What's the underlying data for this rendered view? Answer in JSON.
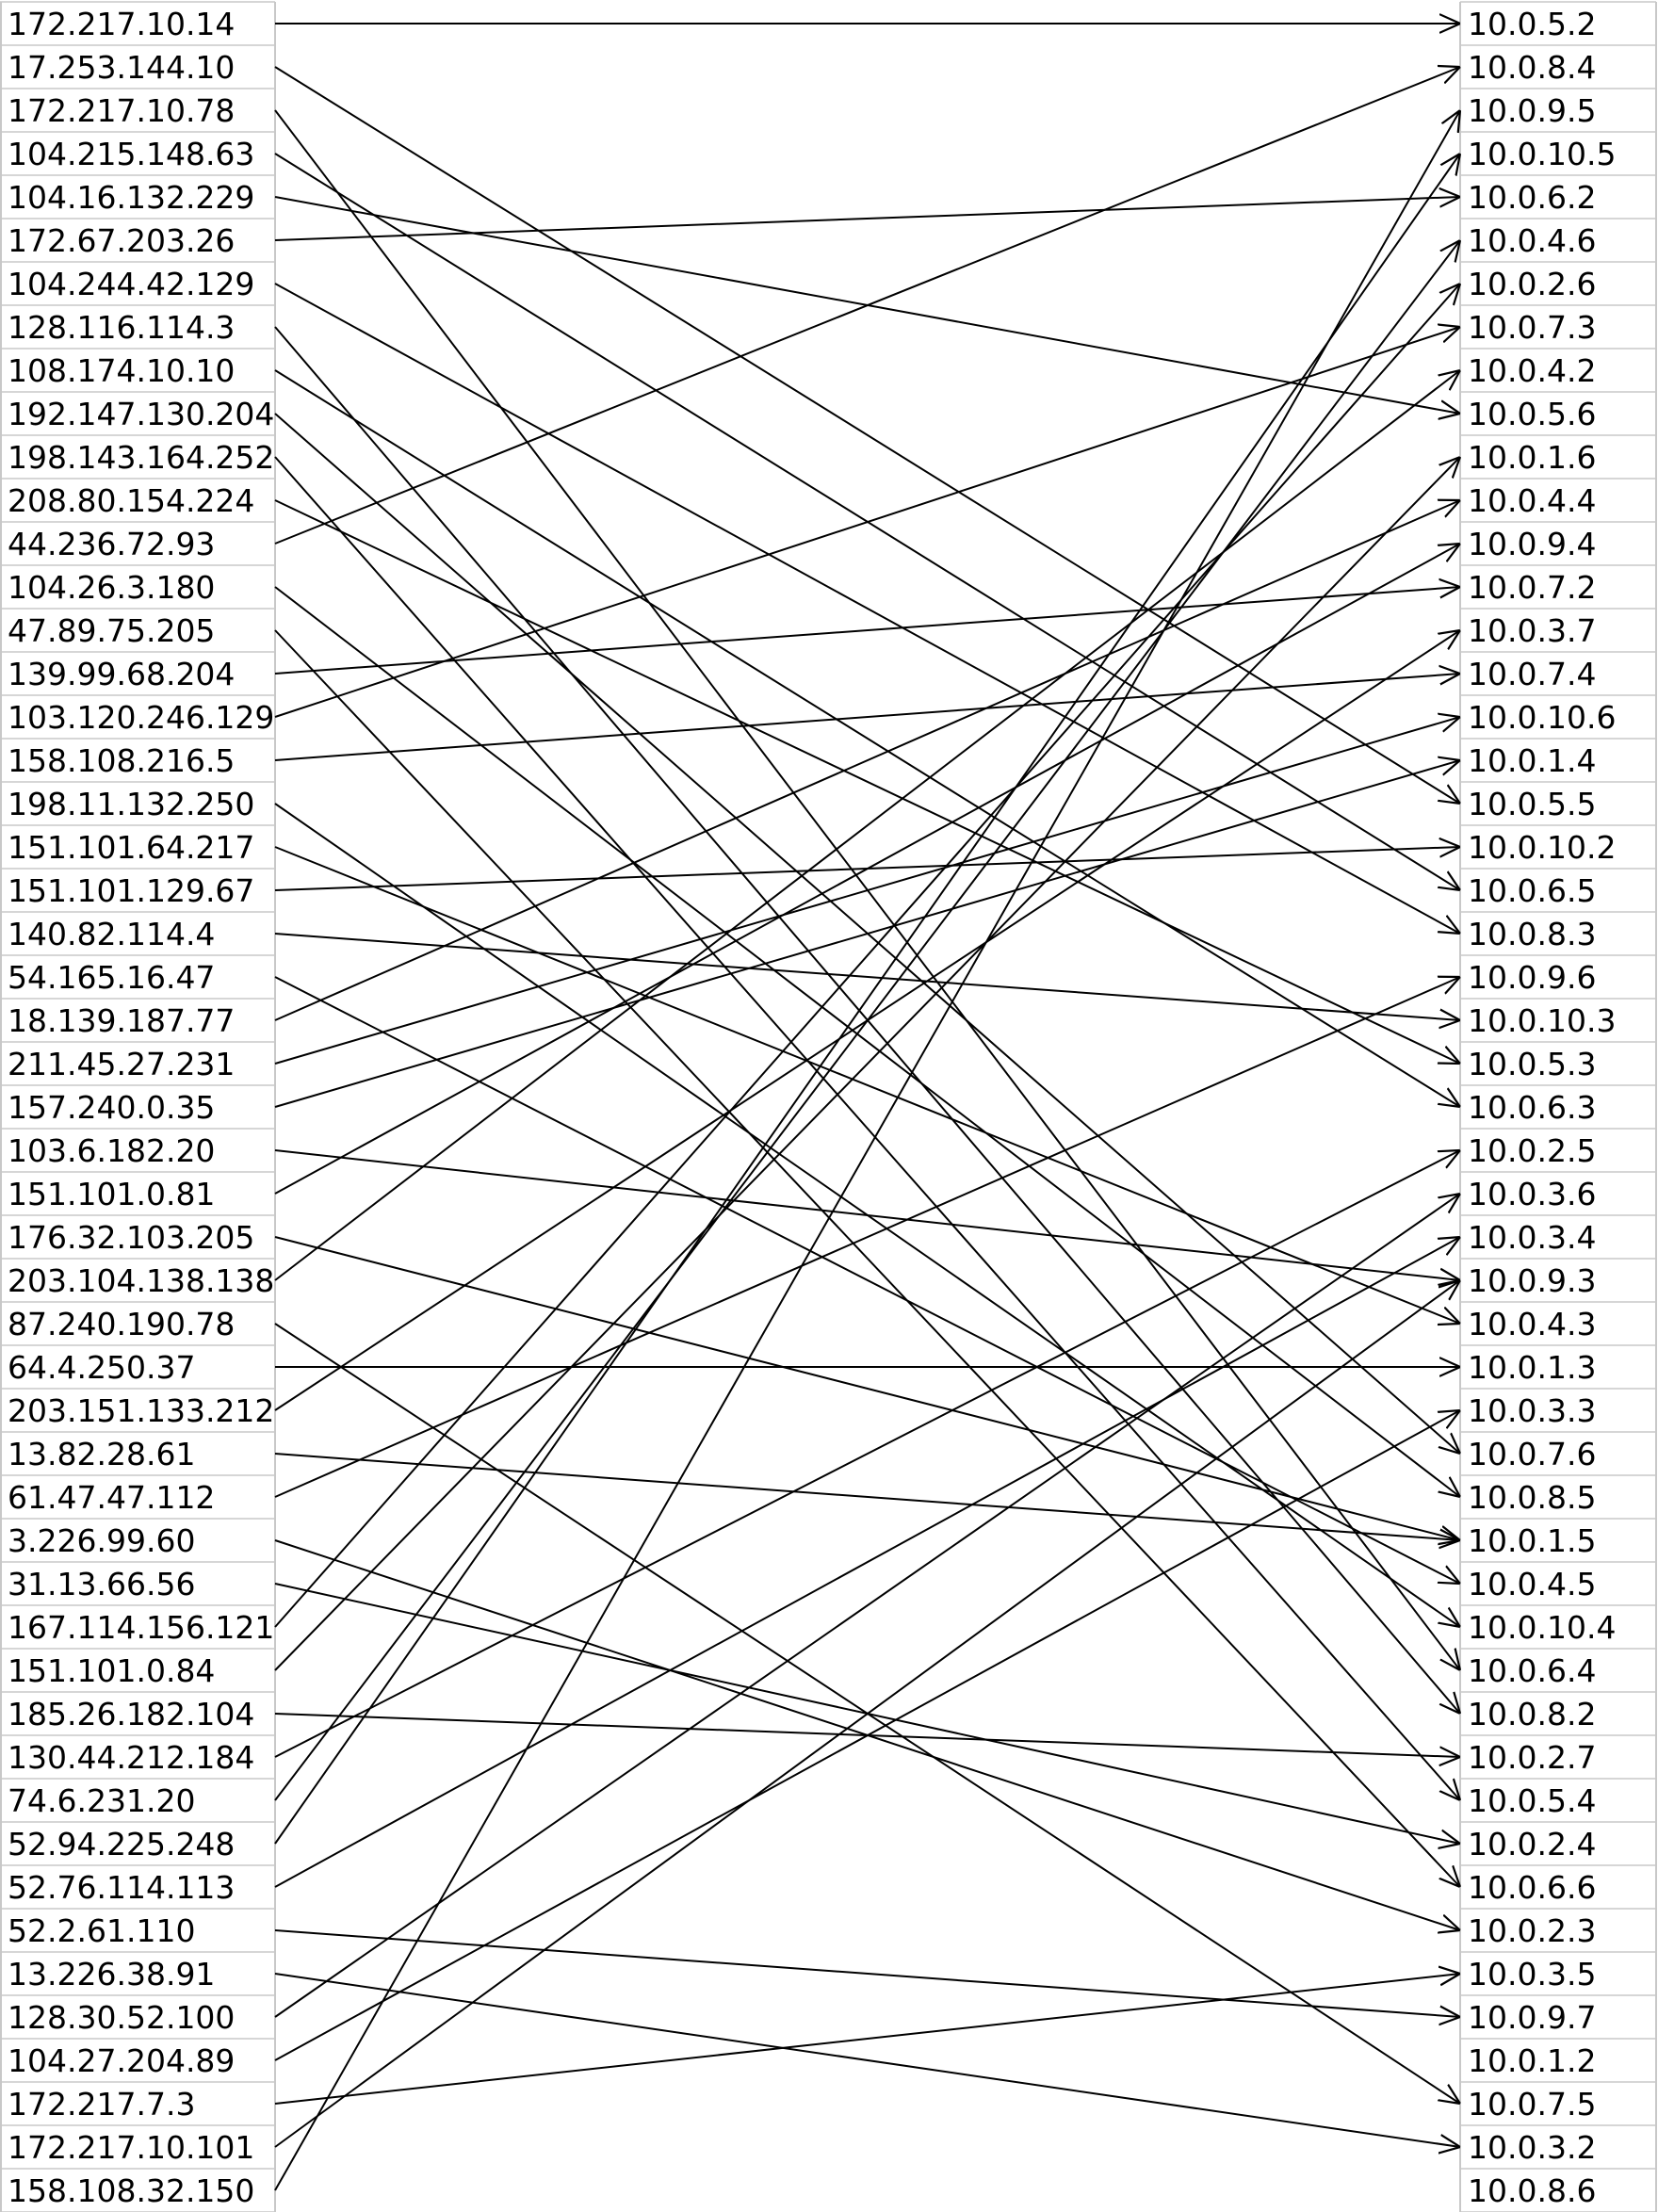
{
  "sources": [
    "172.217.10.14",
    "17.253.144.10",
    "172.217.10.78",
    "104.215.148.63",
    "104.16.132.229",
    "172.67.203.26",
    "104.244.42.129",
    "128.116.114.3",
    "108.174.10.10",
    "192.147.130.204",
    "198.143.164.252",
    "208.80.154.224",
    "44.236.72.93",
    "104.26.3.180",
    "47.89.75.205",
    "139.99.68.204",
    "103.120.246.129",
    "158.108.216.5",
    "198.11.132.250",
    "151.101.64.217",
    "151.101.129.67",
    "140.82.114.4",
    "54.165.16.47",
    "18.139.187.77",
    "211.45.27.231",
    "157.240.0.35",
    "103.6.182.20",
    "151.101.0.81",
    "176.32.103.205",
    "203.104.138.138",
    "87.240.190.78",
    "64.4.250.37",
    "203.151.133.212",
    "13.82.28.61",
    "61.47.47.112",
    "3.226.99.60",
    "31.13.66.56",
    "167.114.156.121",
    "151.101.0.84",
    "185.26.182.104",
    "130.44.212.184",
    "74.6.231.20",
    "52.94.225.248",
    "52.76.114.113",
    "52.2.61.110",
    "13.226.38.91",
    "128.30.52.100",
    "104.27.204.89",
    "172.217.7.3",
    "172.217.10.101",
    "158.108.32.150"
  ],
  "targets": [
    "10.0.5.2",
    "10.0.8.4",
    "10.0.9.5",
    "10.0.10.5",
    "10.0.6.2",
    "10.0.4.6",
    "10.0.2.6",
    "10.0.7.3",
    "10.0.4.2",
    "10.0.5.6",
    "10.0.1.6",
    "10.0.4.4",
    "10.0.9.4",
    "10.0.7.2",
    "10.0.3.7",
    "10.0.7.4",
    "10.0.10.6",
    "10.0.1.4",
    "10.0.5.5",
    "10.0.10.2",
    "10.0.6.5",
    "10.0.8.3",
    "10.0.9.6",
    "10.0.10.3",
    "10.0.5.3",
    "10.0.6.3",
    "10.0.2.5",
    "10.0.3.6",
    "10.0.3.4",
    "10.0.9.3",
    "10.0.4.3",
    "10.0.1.3",
    "10.0.3.3",
    "10.0.7.6",
    "10.0.8.5",
    "10.0.1.5",
    "10.0.4.5",
    "10.0.10.4",
    "10.0.6.4",
    "10.0.8.2",
    "10.0.2.7",
    "10.0.5.4",
    "10.0.2.4",
    "10.0.6.6",
    "10.0.2.3",
    "10.0.3.5",
    "10.0.9.7",
    "10.0.1.2",
    "10.0.7.5",
    "10.0.3.2",
    "10.0.8.6"
  ],
  "connections": [
    [
      "172.217.10.14",
      "10.0.5.2"
    ],
    [
      "17.253.144.10",
      "10.0.5.5"
    ],
    [
      "172.217.10.78",
      "10.0.6.4"
    ],
    [
      "104.215.148.63",
      "10.0.6.5"
    ],
    [
      "104.16.132.229",
      "10.0.5.6"
    ],
    [
      "172.67.203.26",
      "10.0.6.2"
    ],
    [
      "104.244.42.129",
      "10.0.8.3"
    ],
    [
      "128.116.114.3",
      "10.0.8.2"
    ],
    [
      "108.174.10.10",
      "10.0.6.3"
    ],
    [
      "192.147.130.204",
      "10.0.7.6"
    ],
    [
      "198.143.164.252",
      "10.0.5.4"
    ],
    [
      "208.80.154.224",
      "10.0.5.3"
    ],
    [
      "44.236.72.93",
      "10.0.8.4"
    ],
    [
      "104.26.3.180",
      "10.0.8.5"
    ],
    [
      "47.89.75.205",
      "10.0.6.6"
    ],
    [
      "139.99.68.204",
      "10.0.7.2"
    ],
    [
      "103.120.246.129",
      "10.0.7.3"
    ],
    [
      "158.108.216.5",
      "10.0.7.4"
    ],
    [
      "198.11.132.250",
      "10.0.10.4"
    ],
    [
      "151.101.64.217",
      "10.0.4.3"
    ],
    [
      "151.101.129.67",
      "10.0.10.2"
    ],
    [
      "140.82.114.4",
      "10.0.10.3"
    ],
    [
      "54.165.16.47",
      "10.0.4.5"
    ],
    [
      "18.139.187.77",
      "10.0.4.4"
    ],
    [
      "211.45.27.231",
      "10.0.10.6"
    ],
    [
      "157.240.0.35",
      "10.0.1.4"
    ],
    [
      "103.6.182.20",
      "10.0.9.3"
    ],
    [
      "151.101.0.81",
      "10.0.9.4"
    ],
    [
      "176.32.103.205",
      "10.0.1.5"
    ],
    [
      "203.104.138.138",
      "10.0.4.2"
    ],
    [
      "87.240.190.78",
      "10.0.7.5"
    ],
    [
      "64.4.250.37",
      "10.0.1.3"
    ],
    [
      "203.151.133.212",
      "10.0.3.7"
    ],
    [
      "13.82.28.61",
      "10.0.1.5"
    ],
    [
      "61.47.47.112",
      "10.0.9.6"
    ],
    [
      "3.226.99.60",
      "10.0.2.3"
    ],
    [
      "31.13.66.56",
      "10.0.2.4"
    ],
    [
      "167.114.156.121",
      "10.0.2.6"
    ],
    [
      "151.101.0.84",
      "10.0.1.6"
    ],
    [
      "185.26.182.104",
      "10.0.2.7"
    ],
    [
      "130.44.212.184",
      "10.0.2.5"
    ],
    [
      "74.6.231.20",
      "10.0.4.6"
    ],
    [
      "52.94.225.248",
      "10.0.10.5"
    ],
    [
      "52.76.114.113",
      "10.0.3.4"
    ],
    [
      "52.2.61.110",
      "10.0.9.7"
    ],
    [
      "13.226.38.91",
      "10.0.3.2"
    ],
    [
      "128.30.52.100",
      "10.0.3.6"
    ],
    [
      "104.27.204.89",
      "10.0.3.3"
    ],
    [
      "172.217.7.3",
      "10.0.3.5"
    ],
    [
      "172.217.10.101",
      "10.0.9.3"
    ],
    [
      "158.108.32.150",
      "10.0.9.5"
    ]
  ]
}
